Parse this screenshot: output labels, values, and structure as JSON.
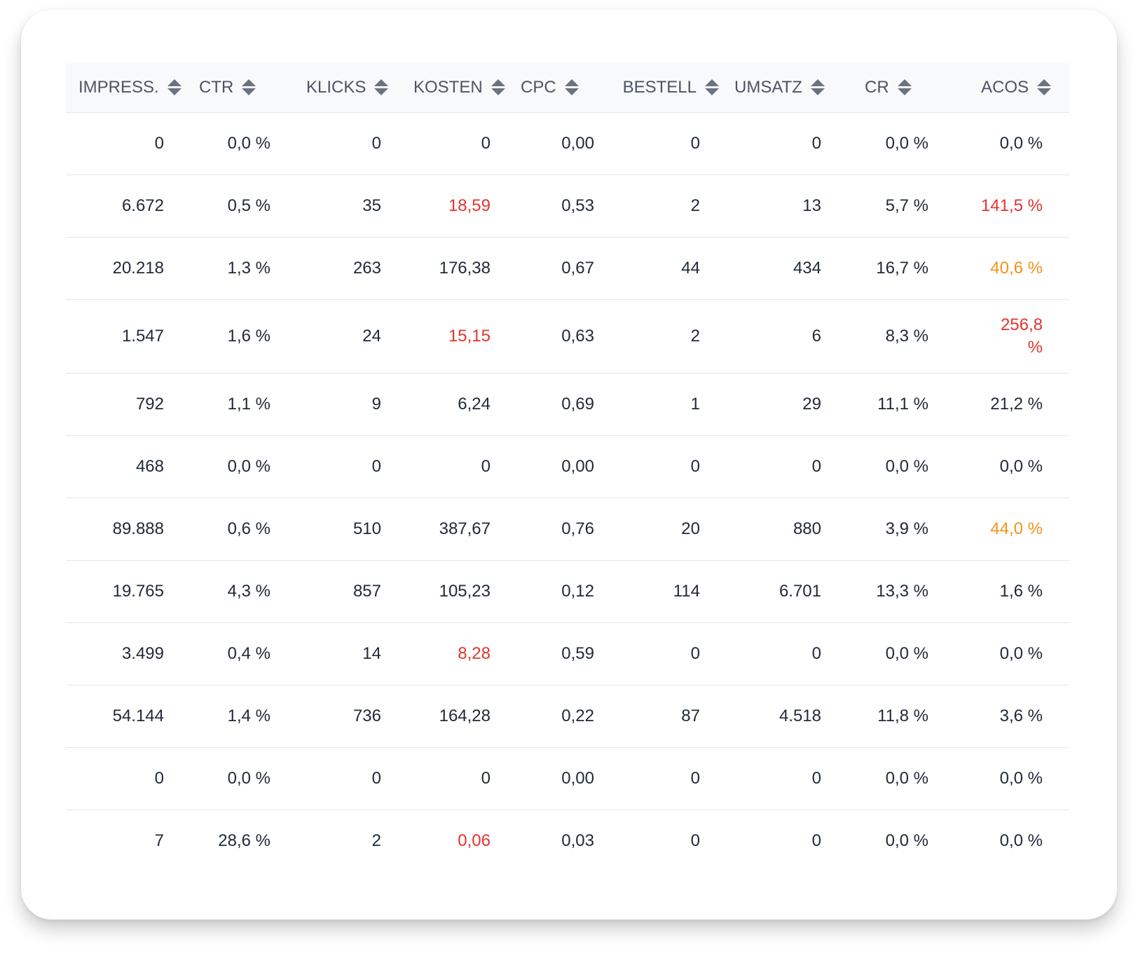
{
  "table": {
    "headers": [
      "IMPRESS.",
      "CTR",
      "KLICKS",
      "KOSTEN",
      "CPC",
      "BESTELL",
      "UMSATZ",
      "CR",
      "ACOS"
    ],
    "rows": [
      {
        "impressions": "0",
        "ctr": "0,0 %",
        "klicks": "0",
        "kosten": "0",
        "cpc": "0,00",
        "bestell": "0",
        "umsatz": "0",
        "cr": "0,0 %",
        "acos": "0,0 %",
        "kosten_status": "normal",
        "acos_status": "normal"
      },
      {
        "impressions": "6.672",
        "ctr": "0,5 %",
        "klicks": "35",
        "kosten": "18,59",
        "cpc": "0,53",
        "bestell": "2",
        "umsatz": "13",
        "cr": "5,7 %",
        "acos": "141,5 %",
        "kosten_status": "bad",
        "acos_status": "bad"
      },
      {
        "impressions": "20.218",
        "ctr": "1,3 %",
        "klicks": "263",
        "kosten": "176,38",
        "cpc": "0,67",
        "bestell": "44",
        "umsatz": "434",
        "cr": "16,7 %",
        "acos": "40,6 %",
        "kosten_status": "normal",
        "acos_status": "warn"
      },
      {
        "impressions": "1.547",
        "ctr": "1,6 %",
        "klicks": "24",
        "kosten": "15,15",
        "cpc": "0,63",
        "bestell": "2",
        "umsatz": "6",
        "cr": "8,3 %",
        "acos": "256,8 %",
        "kosten_status": "bad",
        "acos_status": "bad"
      },
      {
        "impressions": "792",
        "ctr": "1,1 %",
        "klicks": "9",
        "kosten": "6,24",
        "cpc": "0,69",
        "bestell": "1",
        "umsatz": "29",
        "cr": "11,1 %",
        "acos": "21,2 %",
        "kosten_status": "normal",
        "acos_status": "normal"
      },
      {
        "impressions": "468",
        "ctr": "0,0 %",
        "klicks": "0",
        "kosten": "0",
        "cpc": "0,00",
        "bestell": "0",
        "umsatz": "0",
        "cr": "0,0 %",
        "acos": "0,0 %",
        "kosten_status": "normal",
        "acos_status": "normal"
      },
      {
        "impressions": "89.888",
        "ctr": "0,6 %",
        "klicks": "510",
        "kosten": "387,67",
        "cpc": "0,76",
        "bestell": "20",
        "umsatz": "880",
        "cr": "3,9 %",
        "acos": "44,0 %",
        "kosten_status": "normal",
        "acos_status": "warn"
      },
      {
        "impressions": "19.765",
        "ctr": "4,3 %",
        "klicks": "857",
        "kosten": "105,23",
        "cpc": "0,12",
        "bestell": "114",
        "umsatz": "6.701",
        "cr": "13,3 %",
        "acos": "1,6 %",
        "kosten_status": "normal",
        "acos_status": "normal"
      },
      {
        "impressions": "3.499",
        "ctr": "0,4 %",
        "klicks": "14",
        "kosten": "8,28",
        "cpc": "0,59",
        "bestell": "0",
        "umsatz": "0",
        "cr": "0,0 %",
        "acos": "0,0 %",
        "kosten_status": "bad",
        "acos_status": "normal"
      },
      {
        "impressions": "54.144",
        "ctr": "1,4 %",
        "klicks": "736",
        "kosten": "164,28",
        "cpc": "0,22",
        "bestell": "87",
        "umsatz": "4.518",
        "cr": "11,8 %",
        "acos": "3,6 %",
        "kosten_status": "normal",
        "acos_status": "normal"
      },
      {
        "impressions": "0",
        "ctr": "0,0 %",
        "klicks": "0",
        "kosten": "0",
        "cpc": "0,00",
        "bestell": "0",
        "umsatz": "0",
        "cr": "0,0 %",
        "acos": "0,0 %",
        "kosten_status": "normal",
        "acos_status": "normal"
      },
      {
        "impressions": "7",
        "ctr": "28,6 %",
        "klicks": "2",
        "kosten": "0,06",
        "cpc": "0,03",
        "bestell": "0",
        "umsatz": "0",
        "cr": "0,0 %",
        "acos": "0,0 %",
        "kosten_status": "bad",
        "acos_status": "normal"
      }
    ]
  },
  "colors": {
    "bad": "#e3342f",
    "warn": "#f39219",
    "normal": "#1f2937",
    "header_text": "#4b5563",
    "header_bg": "#f8f9fb",
    "divider": "#e3e6ea"
  },
  "icons": {
    "sort": "sort-arrows-icon"
  }
}
